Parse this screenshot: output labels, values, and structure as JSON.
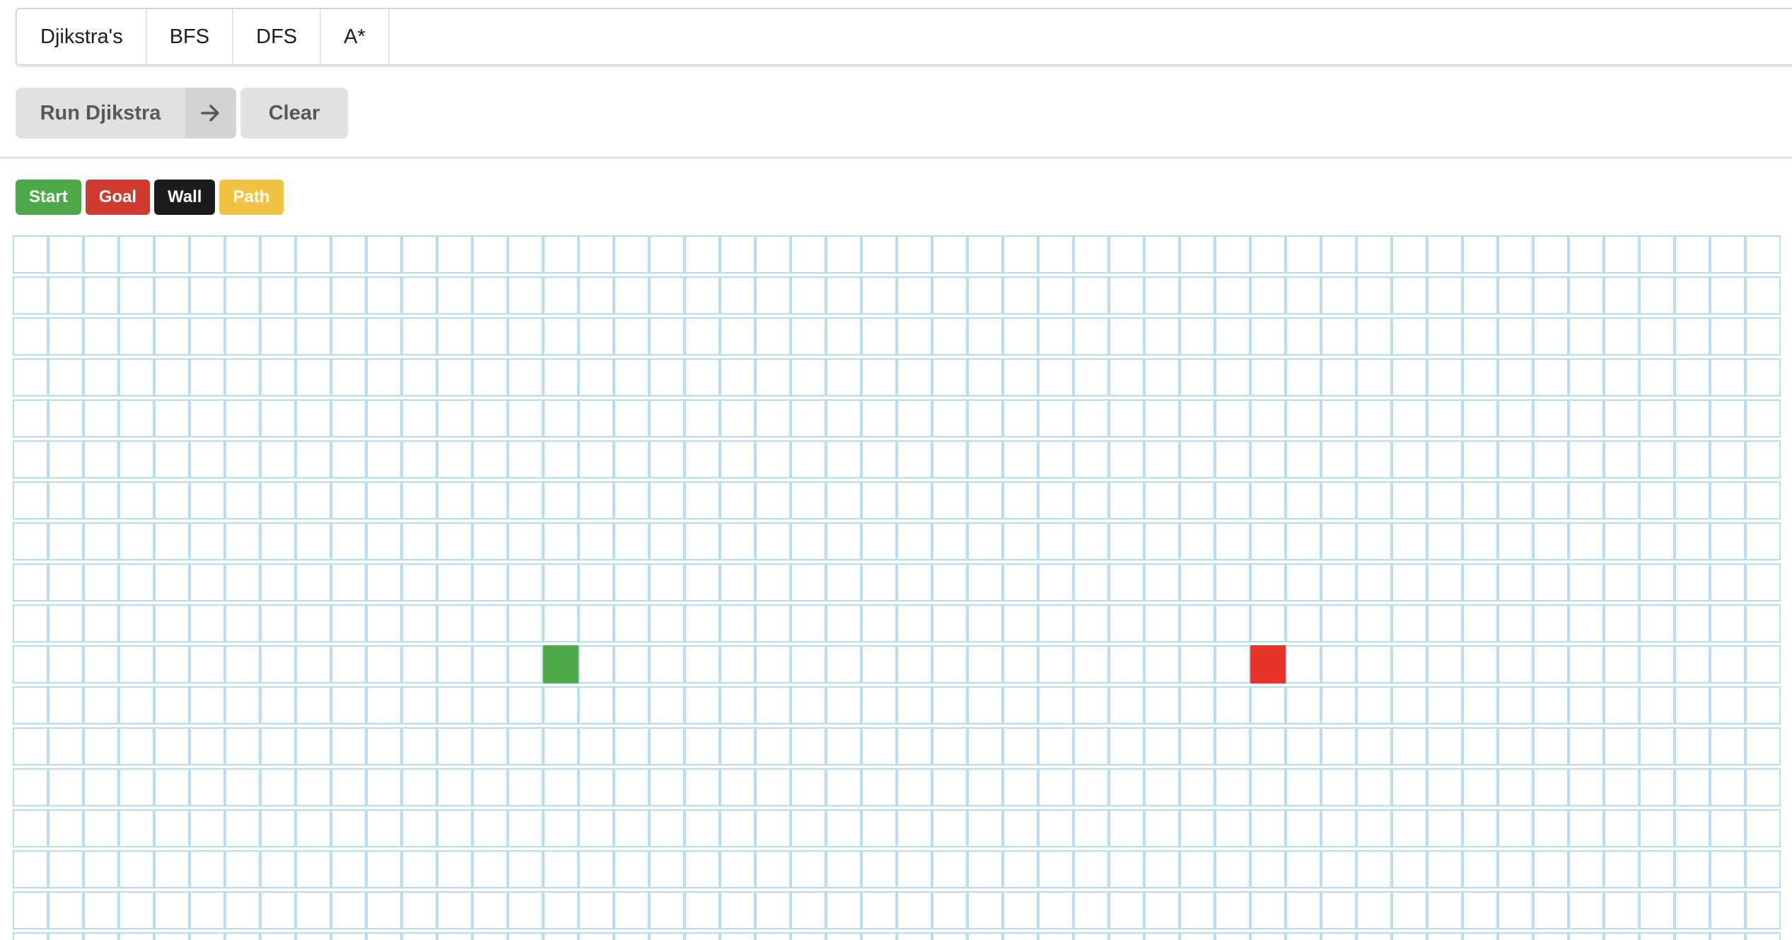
{
  "algorithm_menu": {
    "items": [
      {
        "label": "Djikstra's",
        "name": "tab-dijkstra"
      },
      {
        "label": "BFS",
        "name": "tab-bfs"
      },
      {
        "label": "DFS",
        "name": "tab-dfs"
      },
      {
        "label": "A*",
        "name": "tab-astar"
      }
    ]
  },
  "actions": {
    "run_label": "Run Djikstra",
    "run_icon": "arrow-right-icon",
    "clear_label": "Clear"
  },
  "legend": {
    "start": {
      "label": "Start",
      "color": "#4ea94a"
    },
    "goal": {
      "label": "Goal",
      "color": "#e8332a"
    },
    "wall": {
      "label": "Wall",
      "color": "#1b1c1d"
    },
    "path": {
      "label": "Path",
      "color": "#f2c242"
    }
  },
  "grid": {
    "cols": 50,
    "rows": 18,
    "start": {
      "row": 10,
      "col": 15
    },
    "goal": {
      "row": 10,
      "col": 35
    },
    "walls": [],
    "path": []
  }
}
